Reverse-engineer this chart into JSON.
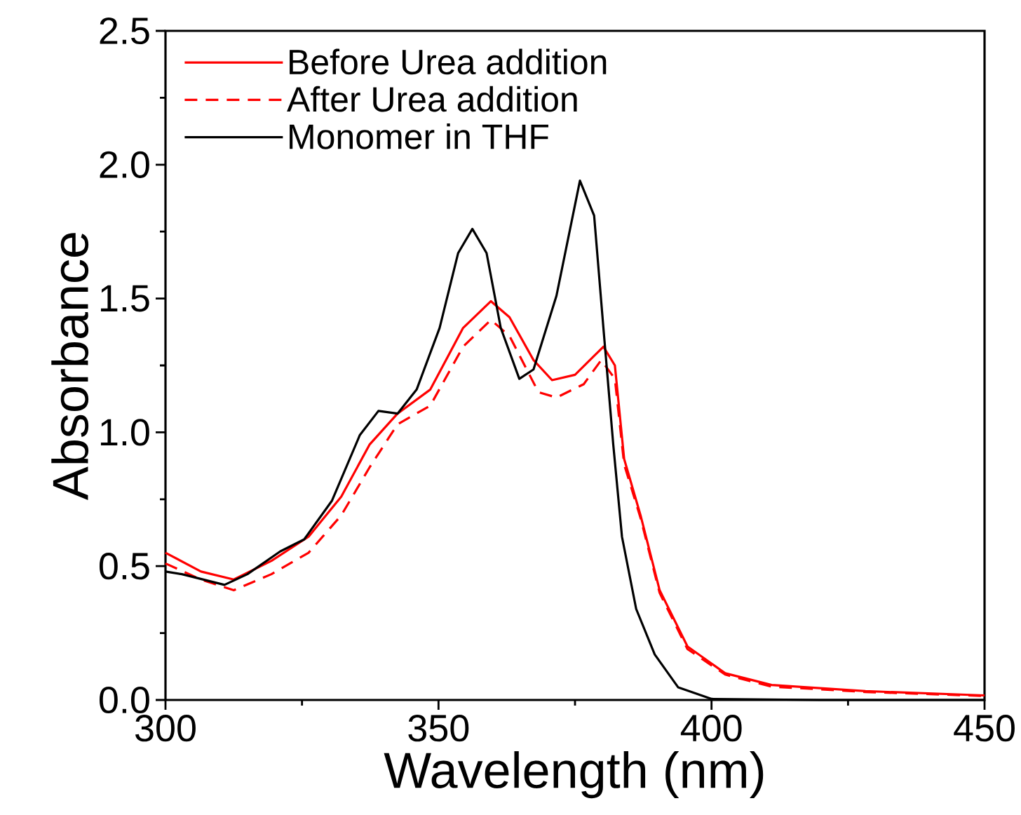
{
  "chart_data": {
    "type": "line",
    "xlabel": "Wavelength (nm)",
    "ylabel": "Absorbance",
    "xlim": [
      300,
      450
    ],
    "ylim": [
      0,
      2.5
    ],
    "xticks": [
      300,
      350,
      400,
      450
    ],
    "yticks": [
      {
        "value": 0,
        "label": "0.0"
      },
      0.5,
      {
        "value": 1,
        "label": "1.0"
      },
      1.5,
      {
        "value": 2,
        "label": "2.0"
      },
      2.5
    ],
    "legend": "top left",
    "grid": false,
    "series": [
      {
        "name": "Before Urea addition",
        "color": "#ff0000",
        "line_style": "solid",
        "x": [
          300,
          306.5,
          312.5,
          319.4,
          326.2,
          332.2,
          337.4,
          342.5,
          348.5,
          354.5,
          359.6,
          363,
          367.4,
          370.8,
          375,
          380.2,
          382.3,
          384,
          387,
          390.5,
          395.6,
          402.5,
          411,
          428.2,
          450
        ],
        "values": [
          0.55,
          0.48,
          0.45,
          0.52,
          0.61,
          0.76,
          0.955,
          1.07,
          1.16,
          1.39,
          1.49,
          1.43,
          1.27,
          1.195,
          1.215,
          1.32,
          1.25,
          0.9,
          0.69,
          0.41,
          0.2,
          0.1,
          0.056,
          0.033,
          0.017
        ]
      },
      {
        "name": "After Urea addition",
        "color": "#ff0000",
        "line_style": "dashed",
        "x": [
          300,
          306.5,
          312.5,
          319.4,
          326.2,
          332.2,
          337.4,
          342.5,
          348.5,
          354.5,
          359.6,
          363,
          368.3,
          371.6,
          376.6,
          379.8,
          382.3,
          384,
          387,
          390.5,
          395.6,
          402.5,
          411,
          428.2,
          450
        ],
        "values": [
          0.51,
          0.45,
          0.41,
          0.47,
          0.55,
          0.69,
          0.87,
          1.03,
          1.1,
          1.32,
          1.42,
          1.36,
          1.15,
          1.13,
          1.18,
          1.27,
          1.2,
          0.88,
          0.68,
          0.4,
          0.19,
          0.095,
          0.05,
          0.03,
          0.015
        ]
      },
      {
        "name": "Monomer in THF",
        "color": "#000000",
        "line_style": "solid",
        "x": [
          300,
          303,
          310.8,
          315,
          321,
          325.4,
          330.5,
          335.6,
          339,
          342.5,
          346,
          350.2,
          353.6,
          356.2,
          358.8,
          361.4,
          364.8,
          367.4,
          371.6,
          375.9,
          378.5,
          380.2,
          382,
          383.6,
          386.2,
          389.6,
          393.9,
          400,
          420,
          450
        ],
        "values": [
          0.48,
          0.47,
          0.43,
          0.47,
          0.555,
          0.6,
          0.745,
          0.99,
          1.08,
          1.07,
          1.16,
          1.39,
          1.67,
          1.76,
          1.67,
          1.39,
          1.2,
          1.235,
          1.51,
          1.94,
          1.81,
          1.39,
          0.955,
          0.61,
          0.34,
          0.17,
          0.047,
          0.004,
          0,
          0
        ]
      }
    ]
  }
}
